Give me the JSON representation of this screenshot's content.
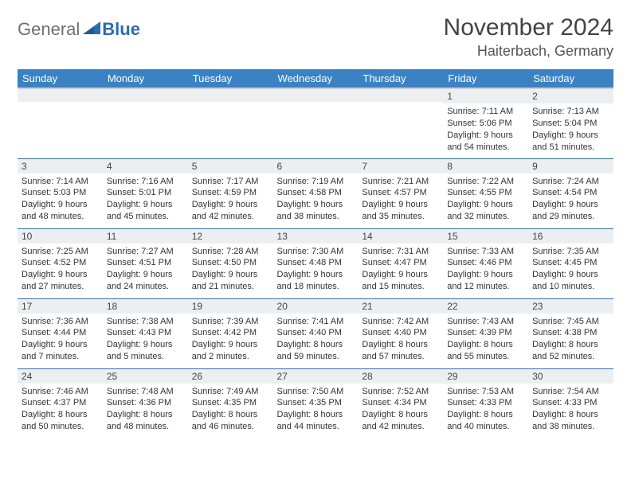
{
  "logo": {
    "gray": "General",
    "blue": "Blue"
  },
  "title": "November 2024",
  "location": "Haiterbach, Germany",
  "colors": {
    "header_bg": "#3b82c4",
    "header_text": "#ffffff",
    "daynum_bg": "#eceff1",
    "row_border": "#3b6fa0",
    "logo_gray": "#6e6e6e",
    "logo_blue": "#2a6db0"
  },
  "weekdays": [
    "Sunday",
    "Monday",
    "Tuesday",
    "Wednesday",
    "Thursday",
    "Friday",
    "Saturday"
  ],
  "weeks": [
    [
      {
        "day": "",
        "sunrise": "",
        "sunset": "",
        "daylight": ""
      },
      {
        "day": "",
        "sunrise": "",
        "sunset": "",
        "daylight": ""
      },
      {
        "day": "",
        "sunrise": "",
        "sunset": "",
        "daylight": ""
      },
      {
        "day": "",
        "sunrise": "",
        "sunset": "",
        "daylight": ""
      },
      {
        "day": "",
        "sunrise": "",
        "sunset": "",
        "daylight": ""
      },
      {
        "day": "1",
        "sunrise": "Sunrise: 7:11 AM",
        "sunset": "Sunset: 5:06 PM",
        "daylight": "Daylight: 9 hours and 54 minutes."
      },
      {
        "day": "2",
        "sunrise": "Sunrise: 7:13 AM",
        "sunset": "Sunset: 5:04 PM",
        "daylight": "Daylight: 9 hours and 51 minutes."
      }
    ],
    [
      {
        "day": "3",
        "sunrise": "Sunrise: 7:14 AM",
        "sunset": "Sunset: 5:03 PM",
        "daylight": "Daylight: 9 hours and 48 minutes."
      },
      {
        "day": "4",
        "sunrise": "Sunrise: 7:16 AM",
        "sunset": "Sunset: 5:01 PM",
        "daylight": "Daylight: 9 hours and 45 minutes."
      },
      {
        "day": "5",
        "sunrise": "Sunrise: 7:17 AM",
        "sunset": "Sunset: 4:59 PM",
        "daylight": "Daylight: 9 hours and 42 minutes."
      },
      {
        "day": "6",
        "sunrise": "Sunrise: 7:19 AM",
        "sunset": "Sunset: 4:58 PM",
        "daylight": "Daylight: 9 hours and 38 minutes."
      },
      {
        "day": "7",
        "sunrise": "Sunrise: 7:21 AM",
        "sunset": "Sunset: 4:57 PM",
        "daylight": "Daylight: 9 hours and 35 minutes."
      },
      {
        "day": "8",
        "sunrise": "Sunrise: 7:22 AM",
        "sunset": "Sunset: 4:55 PM",
        "daylight": "Daylight: 9 hours and 32 minutes."
      },
      {
        "day": "9",
        "sunrise": "Sunrise: 7:24 AM",
        "sunset": "Sunset: 4:54 PM",
        "daylight": "Daylight: 9 hours and 29 minutes."
      }
    ],
    [
      {
        "day": "10",
        "sunrise": "Sunrise: 7:25 AM",
        "sunset": "Sunset: 4:52 PM",
        "daylight": "Daylight: 9 hours and 27 minutes."
      },
      {
        "day": "11",
        "sunrise": "Sunrise: 7:27 AM",
        "sunset": "Sunset: 4:51 PM",
        "daylight": "Daylight: 9 hours and 24 minutes."
      },
      {
        "day": "12",
        "sunrise": "Sunrise: 7:28 AM",
        "sunset": "Sunset: 4:50 PM",
        "daylight": "Daylight: 9 hours and 21 minutes."
      },
      {
        "day": "13",
        "sunrise": "Sunrise: 7:30 AM",
        "sunset": "Sunset: 4:48 PM",
        "daylight": "Daylight: 9 hours and 18 minutes."
      },
      {
        "day": "14",
        "sunrise": "Sunrise: 7:31 AM",
        "sunset": "Sunset: 4:47 PM",
        "daylight": "Daylight: 9 hours and 15 minutes."
      },
      {
        "day": "15",
        "sunrise": "Sunrise: 7:33 AM",
        "sunset": "Sunset: 4:46 PM",
        "daylight": "Daylight: 9 hours and 12 minutes."
      },
      {
        "day": "16",
        "sunrise": "Sunrise: 7:35 AM",
        "sunset": "Sunset: 4:45 PM",
        "daylight": "Daylight: 9 hours and 10 minutes."
      }
    ],
    [
      {
        "day": "17",
        "sunrise": "Sunrise: 7:36 AM",
        "sunset": "Sunset: 4:44 PM",
        "daylight": "Daylight: 9 hours and 7 minutes."
      },
      {
        "day": "18",
        "sunrise": "Sunrise: 7:38 AM",
        "sunset": "Sunset: 4:43 PM",
        "daylight": "Daylight: 9 hours and 5 minutes."
      },
      {
        "day": "19",
        "sunrise": "Sunrise: 7:39 AM",
        "sunset": "Sunset: 4:42 PM",
        "daylight": "Daylight: 9 hours and 2 minutes."
      },
      {
        "day": "20",
        "sunrise": "Sunrise: 7:41 AM",
        "sunset": "Sunset: 4:40 PM",
        "daylight": "Daylight: 8 hours and 59 minutes."
      },
      {
        "day": "21",
        "sunrise": "Sunrise: 7:42 AM",
        "sunset": "Sunset: 4:40 PM",
        "daylight": "Daylight: 8 hours and 57 minutes."
      },
      {
        "day": "22",
        "sunrise": "Sunrise: 7:43 AM",
        "sunset": "Sunset: 4:39 PM",
        "daylight": "Daylight: 8 hours and 55 minutes."
      },
      {
        "day": "23",
        "sunrise": "Sunrise: 7:45 AM",
        "sunset": "Sunset: 4:38 PM",
        "daylight": "Daylight: 8 hours and 52 minutes."
      }
    ],
    [
      {
        "day": "24",
        "sunrise": "Sunrise: 7:46 AM",
        "sunset": "Sunset: 4:37 PM",
        "daylight": "Daylight: 8 hours and 50 minutes."
      },
      {
        "day": "25",
        "sunrise": "Sunrise: 7:48 AM",
        "sunset": "Sunset: 4:36 PM",
        "daylight": "Daylight: 8 hours and 48 minutes."
      },
      {
        "day": "26",
        "sunrise": "Sunrise: 7:49 AM",
        "sunset": "Sunset: 4:35 PM",
        "daylight": "Daylight: 8 hours and 46 minutes."
      },
      {
        "day": "27",
        "sunrise": "Sunrise: 7:50 AM",
        "sunset": "Sunset: 4:35 PM",
        "daylight": "Daylight: 8 hours and 44 minutes."
      },
      {
        "day": "28",
        "sunrise": "Sunrise: 7:52 AM",
        "sunset": "Sunset: 4:34 PM",
        "daylight": "Daylight: 8 hours and 42 minutes."
      },
      {
        "day": "29",
        "sunrise": "Sunrise: 7:53 AM",
        "sunset": "Sunset: 4:33 PM",
        "daylight": "Daylight: 8 hours and 40 minutes."
      },
      {
        "day": "30",
        "sunrise": "Sunrise: 7:54 AM",
        "sunset": "Sunset: 4:33 PM",
        "daylight": "Daylight: 8 hours and 38 minutes."
      }
    ]
  ]
}
